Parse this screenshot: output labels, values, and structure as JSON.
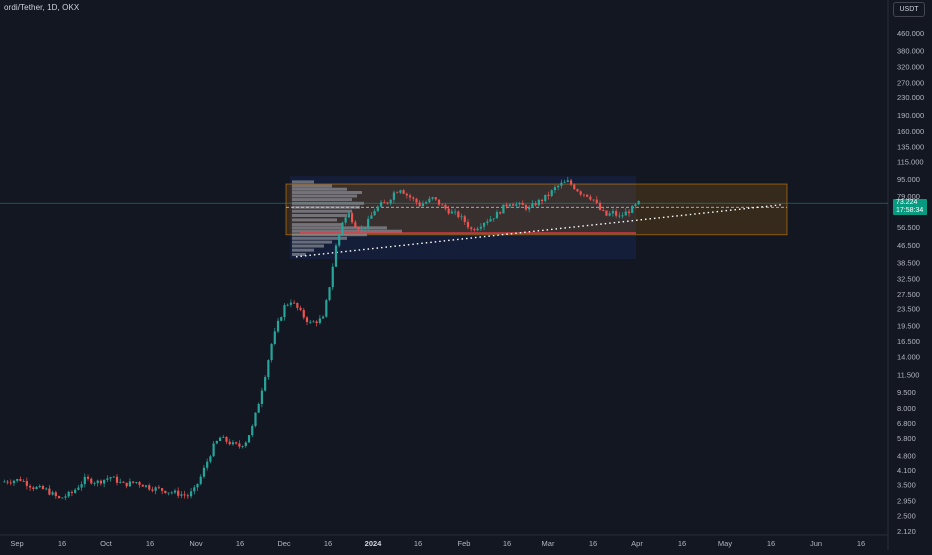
{
  "header": {
    "symbol_line": "ordi/Tether, 1D, OKX",
    "currency_button": "USDT"
  },
  "last_price": {
    "value": "73.224",
    "countdown": "17:58:34",
    "color": "#089981"
  },
  "colors": {
    "background": "#131722",
    "up": "#26a69a",
    "down": "#ef5350",
    "range_box": "#ff9800",
    "volume_profile": "#9598a1",
    "support_line": "#f23645"
  },
  "chart_data": {
    "type": "candlestick",
    "y_scale": "log",
    "x_ticks": [
      "Sep",
      "16",
      "Oct",
      "16",
      "Nov",
      "16",
      "Dec",
      "16",
      "2024",
      "16",
      "Feb",
      "16",
      "Mar",
      "16",
      "Apr",
      "16",
      "May",
      "16",
      "Jun",
      "16"
    ],
    "y_ticks": [
      "460.000",
      "380.000",
      "320.000",
      "270.000",
      "230.000",
      "190.000",
      "160.000",
      "135.000",
      "115.000",
      "95.000",
      "79.000",
      "56.500",
      "46.500",
      "38.500",
      "32.500",
      "27.500",
      "23.500",
      "19.500",
      "16.500",
      "14.000",
      "11.500",
      "9.500",
      "8.000",
      "6.800",
      "5.800",
      "4.800",
      "4.100",
      "3.500",
      "2.950",
      "2.500",
      "2.120"
    ],
    "price_path": [
      [
        0,
        3.6
      ],
      [
        6,
        3.7
      ],
      [
        10,
        3.4
      ],
      [
        14,
        3.3
      ],
      [
        18,
        3.0
      ],
      [
        22,
        3.2
      ],
      [
        26,
        3.7
      ],
      [
        30,
        3.6
      ],
      [
        34,
        3.8
      ],
      [
        38,
        3.5
      ],
      [
        42,
        3.6
      ],
      [
        46,
        3.4
      ],
      [
        50,
        3.3
      ],
      [
        54,
        3.2
      ],
      [
        58,
        3.1
      ],
      [
        60,
        3.3
      ],
      [
        62,
        3.8
      ],
      [
        64,
        4.5
      ],
      [
        66,
        5.3
      ],
      [
        68,
        5.8
      ],
      [
        70,
        5.6
      ],
      [
        72,
        5.4
      ],
      [
        74,
        5.3
      ],
      [
        76,
        5.6
      ],
      [
        78,
        6.5
      ],
      [
        80,
        8.5
      ],
      [
        82,
        11.5
      ],
      [
        84,
        16.0
      ],
      [
        86,
        20.0
      ],
      [
        88,
        24.0
      ],
      [
        90,
        25.5
      ],
      [
        92,
        23.5
      ],
      [
        94,
        21.5
      ],
      [
        96,
        20.0
      ],
      [
        98,
        20.5
      ],
      [
        100,
        21.0
      ],
      [
        102,
        30.0
      ],
      [
        104,
        46.0
      ],
      [
        106,
        60.0
      ],
      [
        108,
        65.0
      ],
      [
        110,
        58.0
      ],
      [
        112,
        55.0
      ],
      [
        114,
        60.0
      ],
      [
        116,
        68.0
      ],
      [
        118,
        72.0
      ],
      [
        120,
        74.0
      ],
      [
        122,
        82.0
      ],
      [
        124,
        86.0
      ],
      [
        126,
        80.0
      ],
      [
        128,
        76.0
      ],
      [
        130,
        72.0
      ],
      [
        132,
        74.0
      ],
      [
        134,
        77.0
      ],
      [
        136,
        73.0
      ],
      [
        138,
        69.0
      ],
      [
        140,
        66.0
      ],
      [
        142,
        64.0
      ],
      [
        144,
        60.0
      ],
      [
        146,
        55.0
      ],
      [
        148,
        57.0
      ],
      [
        150,
        60.0
      ],
      [
        152,
        62.0
      ],
      [
        154,
        65.0
      ],
      [
        156,
        70.0
      ],
      [
        158,
        74.0
      ],
      [
        160,
        72.0
      ],
      [
        162,
        71.0
      ],
      [
        164,
        69.0
      ],
      [
        166,
        73.0
      ],
      [
        168,
        76.0
      ],
      [
        170,
        80.0
      ],
      [
        172,
        86.0
      ],
      [
        174,
        90.0
      ],
      [
        176,
        92.0
      ],
      [
        178,
        87.0
      ],
      [
        180,
        82.0
      ],
      [
        182,
        80.0
      ],
      [
        184,
        76.0
      ],
      [
        186,
        68.0
      ],
      [
        188,
        64.0
      ],
      [
        190,
        66.0
      ],
      [
        192,
        63.0
      ],
      [
        194,
        66.0
      ],
      [
        196,
        69.0
      ],
      [
        198,
        73.2
      ]
    ]
  }
}
